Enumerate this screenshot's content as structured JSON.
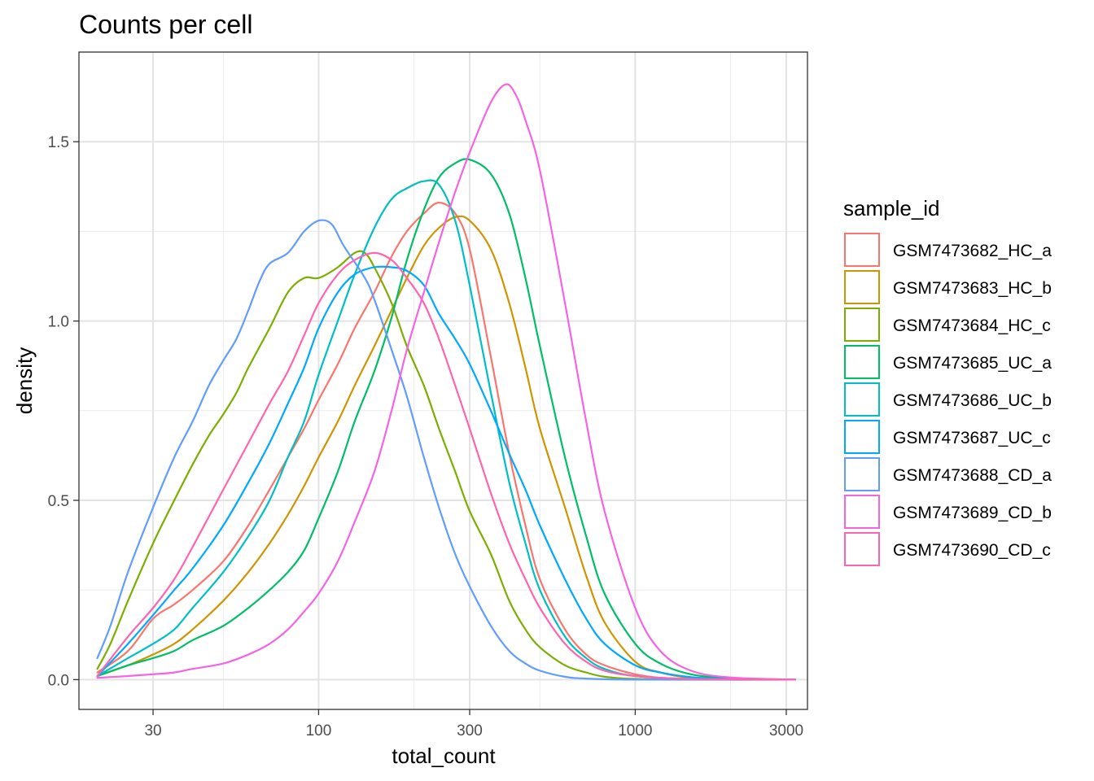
{
  "chart_data": {
    "type": "line",
    "subtype": "density",
    "title": "Counts per cell",
    "xlabel": "total_count",
    "ylabel": "density",
    "xscale": "log10",
    "xlim": [
      17.5,
      3500
    ],
    "ylim": [
      -0.083,
      1.75
    ],
    "xticks": [
      30,
      100,
      300,
      1000,
      3000
    ],
    "xtick_labels": [
      "30",
      "100",
      "300",
      "1000",
      "3000"
    ],
    "xminor": [
      50,
      200,
      500,
      2000
    ],
    "yticks": [
      0.0,
      0.5,
      1.0,
      1.5
    ],
    "ytick_labels": [
      "0.0",
      "0.5",
      "1.0",
      "1.5"
    ],
    "yminor": [
      0.25,
      0.75,
      1.25
    ],
    "grid": true,
    "legend": {
      "title": "sample_id",
      "position": "right"
    },
    "series": [
      {
        "name": "GSM7473682_HC_a",
        "color": "#F8766D",
        "points": [
          [
            20,
            0.02
          ],
          [
            25,
            0.08
          ],
          [
            30,
            0.17
          ],
          [
            35,
            0.21
          ],
          [
            40,
            0.25
          ],
          [
            50,
            0.33
          ],
          [
            60,
            0.43
          ],
          [
            70,
            0.53
          ],
          [
            80,
            0.62
          ],
          [
            90,
            0.7
          ],
          [
            100,
            0.78
          ],
          [
            115,
            0.88
          ],
          [
            130,
            0.98
          ],
          [
            150,
            1.08
          ],
          [
            170,
            1.18
          ],
          [
            190,
            1.25
          ],
          [
            215,
            1.3
          ],
          [
            240,
            1.33
          ],
          [
            270,
            1.3
          ],
          [
            300,
            1.2
          ],
          [
            350,
            0.9
          ],
          [
            400,
            0.63
          ],
          [
            450,
            0.43
          ],
          [
            500,
            0.28
          ],
          [
            600,
            0.14
          ],
          [
            700,
            0.07
          ],
          [
            800,
            0.04
          ],
          [
            1000,
            0.015
          ],
          [
            1200,
            0.005
          ],
          [
            1500,
            0.001
          ],
          [
            3200,
            0.0
          ]
        ]
      },
      {
        "name": "GSM7473683_HC_b",
        "color": "#CD9600",
        "points": [
          [
            20,
            0.01
          ],
          [
            25,
            0.04
          ],
          [
            30,
            0.07
          ],
          [
            35,
            0.1
          ],
          [
            40,
            0.14
          ],
          [
            50,
            0.22
          ],
          [
            60,
            0.3
          ],
          [
            70,
            0.38
          ],
          [
            80,
            0.46
          ],
          [
            90,
            0.54
          ],
          [
            100,
            0.62
          ],
          [
            115,
            0.72
          ],
          [
            130,
            0.82
          ],
          [
            150,
            0.93
          ],
          [
            170,
            1.03
          ],
          [
            190,
            1.12
          ],
          [
            215,
            1.21
          ],
          [
            240,
            1.26
          ],
          [
            270,
            1.29
          ],
          [
            300,
            1.28
          ],
          [
            350,
            1.2
          ],
          [
            400,
            1.05
          ],
          [
            450,
            0.87
          ],
          [
            500,
            0.7
          ],
          [
            600,
            0.48
          ],
          [
            700,
            0.29
          ],
          [
            800,
            0.16
          ],
          [
            1000,
            0.05
          ],
          [
            1200,
            0.02
          ],
          [
            1500,
            0.005
          ],
          [
            2000,
            0.001
          ],
          [
            3200,
            0.0
          ]
        ]
      },
      {
        "name": "GSM7473684_HC_c",
        "color": "#7CAE00",
        "points": [
          [
            20,
            0.03
          ],
          [
            22,
            0.1
          ],
          [
            25,
            0.22
          ],
          [
            30,
            0.38
          ],
          [
            35,
            0.5
          ],
          [
            40,
            0.6
          ],
          [
            45,
            0.68
          ],
          [
            50,
            0.74
          ],
          [
            55,
            0.8
          ],
          [
            60,
            0.87
          ],
          [
            70,
            0.98
          ],
          [
            80,
            1.08
          ],
          [
            90,
            1.12
          ],
          [
            100,
            1.12
          ],
          [
            115,
            1.15
          ],
          [
            130,
            1.19
          ],
          [
            140,
            1.19
          ],
          [
            150,
            1.15
          ],
          [
            170,
            1.05
          ],
          [
            190,
            0.93
          ],
          [
            215,
            0.82
          ],
          [
            240,
            0.7
          ],
          [
            270,
            0.58
          ],
          [
            300,
            0.47
          ],
          [
            350,
            0.35
          ],
          [
            400,
            0.22
          ],
          [
            450,
            0.14
          ],
          [
            500,
            0.09
          ],
          [
            600,
            0.04
          ],
          [
            700,
            0.02
          ],
          [
            800,
            0.008
          ],
          [
            1000,
            0.002
          ],
          [
            1500,
            0.0
          ],
          [
            3200,
            0.0
          ]
        ]
      },
      {
        "name": "GSM7473685_UC_a",
        "color": "#00BE67",
        "points": [
          [
            20,
            0.01
          ],
          [
            25,
            0.04
          ],
          [
            30,
            0.06
          ],
          [
            35,
            0.08
          ],
          [
            40,
            0.11
          ],
          [
            50,
            0.15
          ],
          [
            60,
            0.2
          ],
          [
            70,
            0.25
          ],
          [
            80,
            0.3
          ],
          [
            90,
            0.36
          ],
          [
            100,
            0.45
          ],
          [
            115,
            0.58
          ],
          [
            130,
            0.72
          ],
          [
            150,
            0.86
          ],
          [
            170,
            1.01
          ],
          [
            190,
            1.17
          ],
          [
            215,
            1.31
          ],
          [
            240,
            1.4
          ],
          [
            270,
            1.44
          ],
          [
            300,
            1.45
          ],
          [
            350,
            1.41
          ],
          [
            400,
            1.3
          ],
          [
            450,
            1.12
          ],
          [
            500,
            0.93
          ],
          [
            600,
            0.62
          ],
          [
            700,
            0.4
          ],
          [
            800,
            0.24
          ],
          [
            1000,
            0.1
          ],
          [
            1200,
            0.045
          ],
          [
            1500,
            0.015
          ],
          [
            2000,
            0.004
          ],
          [
            3200,
            0.0
          ]
        ]
      },
      {
        "name": "GSM7473686_UC_b",
        "color": "#00BFC4",
        "points": [
          [
            20,
            0.01
          ],
          [
            25,
            0.06
          ],
          [
            30,
            0.1
          ],
          [
            35,
            0.14
          ],
          [
            40,
            0.2
          ],
          [
            50,
            0.3
          ],
          [
            60,
            0.4
          ],
          [
            70,
            0.5
          ],
          [
            80,
            0.62
          ],
          [
            90,
            0.72
          ],
          [
            100,
            0.85
          ],
          [
            115,
            1.0
          ],
          [
            130,
            1.13
          ],
          [
            150,
            1.26
          ],
          [
            170,
            1.34
          ],
          [
            190,
            1.37
          ],
          [
            215,
            1.39
          ],
          [
            240,
            1.38
          ],
          [
            270,
            1.28
          ],
          [
            300,
            1.1
          ],
          [
            350,
            0.8
          ],
          [
            400,
            0.55
          ],
          [
            450,
            0.38
          ],
          [
            500,
            0.25
          ],
          [
            600,
            0.12
          ],
          [
            700,
            0.06
          ],
          [
            800,
            0.03
          ],
          [
            1000,
            0.01
          ],
          [
            1500,
            0.002
          ],
          [
            3200,
            0.0
          ]
        ]
      },
      {
        "name": "GSM7473687_UC_c",
        "color": "#00A9FF",
        "points": [
          [
            20,
            0.01
          ],
          [
            25,
            0.1
          ],
          [
            30,
            0.18
          ],
          [
            35,
            0.25
          ],
          [
            40,
            0.31
          ],
          [
            50,
            0.43
          ],
          [
            60,
            0.55
          ],
          [
            70,
            0.66
          ],
          [
            80,
            0.77
          ],
          [
            90,
            0.87
          ],
          [
            100,
            0.98
          ],
          [
            115,
            1.08
          ],
          [
            130,
            1.13
          ],
          [
            150,
            1.15
          ],
          [
            170,
            1.15
          ],
          [
            190,
            1.14
          ],
          [
            215,
            1.1
          ],
          [
            240,
            1.02
          ],
          [
            270,
            0.95
          ],
          [
            300,
            0.88
          ],
          [
            350,
            0.75
          ],
          [
            400,
            0.63
          ],
          [
            450,
            0.53
          ],
          [
            500,
            0.43
          ],
          [
            600,
            0.28
          ],
          [
            700,
            0.17
          ],
          [
            800,
            0.1
          ],
          [
            1000,
            0.04
          ],
          [
            1200,
            0.02
          ],
          [
            1500,
            0.007
          ],
          [
            2000,
            0.002
          ],
          [
            3200,
            0.0
          ]
        ]
      },
      {
        "name": "GSM7473688_CD_a",
        "color": "#619CFF",
        "points": [
          [
            20,
            0.06
          ],
          [
            22,
            0.15
          ],
          [
            25,
            0.3
          ],
          [
            30,
            0.48
          ],
          [
            35,
            0.62
          ],
          [
            40,
            0.72
          ],
          [
            45,
            0.82
          ],
          [
            50,
            0.89
          ],
          [
            55,
            0.95
          ],
          [
            60,
            1.03
          ],
          [
            65,
            1.11
          ],
          [
            70,
            1.16
          ],
          [
            80,
            1.19
          ],
          [
            90,
            1.25
          ],
          [
            100,
            1.28
          ],
          [
            110,
            1.27
          ],
          [
            120,
            1.21
          ],
          [
            140,
            1.12
          ],
          [
            150,
            1.06
          ],
          [
            170,
            0.92
          ],
          [
            190,
            0.79
          ],
          [
            215,
            0.62
          ],
          [
            240,
            0.48
          ],
          [
            270,
            0.35
          ],
          [
            300,
            0.26
          ],
          [
            350,
            0.15
          ],
          [
            400,
            0.08
          ],
          [
            450,
            0.045
          ],
          [
            500,
            0.025
          ],
          [
            600,
            0.008
          ],
          [
            700,
            0.003
          ],
          [
            1000,
            0.0
          ],
          [
            3200,
            0.0
          ]
        ]
      },
      {
        "name": "GSM7473689_CD_b",
        "color": "#F564E3",
        "points": [
          [
            20,
            0.005
          ],
          [
            25,
            0.01
          ],
          [
            30,
            0.015
          ],
          [
            35,
            0.02
          ],
          [
            40,
            0.03
          ],
          [
            50,
            0.045
          ],
          [
            60,
            0.07
          ],
          [
            70,
            0.1
          ],
          [
            80,
            0.14
          ],
          [
            90,
            0.19
          ],
          [
            100,
            0.24
          ],
          [
            115,
            0.33
          ],
          [
            130,
            0.44
          ],
          [
            150,
            0.58
          ],
          [
            170,
            0.75
          ],
          [
            190,
            0.92
          ],
          [
            215,
            1.08
          ],
          [
            240,
            1.22
          ],
          [
            270,
            1.36
          ],
          [
            300,
            1.47
          ],
          [
            350,
            1.61
          ],
          [
            390,
            1.66
          ],
          [
            420,
            1.63
          ],
          [
            450,
            1.56
          ],
          [
            500,
            1.42
          ],
          [
            600,
            1.05
          ],
          [
            700,
            0.72
          ],
          [
            800,
            0.47
          ],
          [
            1000,
            0.2
          ],
          [
            1200,
            0.08
          ],
          [
            1500,
            0.025
          ],
          [
            2000,
            0.006
          ],
          [
            3200,
            0.0
          ]
        ]
      },
      {
        "name": "GSM7473690_CD_c",
        "color": "#FF64B0",
        "points": [
          [
            20,
            0.01
          ],
          [
            25,
            0.12
          ],
          [
            30,
            0.2
          ],
          [
            35,
            0.28
          ],
          [
            40,
            0.37
          ],
          [
            50,
            0.53
          ],
          [
            60,
            0.66
          ],
          [
            70,
            0.77
          ],
          [
            80,
            0.86
          ],
          [
            90,
            0.96
          ],
          [
            100,
            1.05
          ],
          [
            115,
            1.13
          ],
          [
            130,
            1.17
          ],
          [
            150,
            1.19
          ],
          [
            170,
            1.17
          ],
          [
            190,
            1.12
          ],
          [
            215,
            1.05
          ],
          [
            240,
            0.95
          ],
          [
            270,
            0.82
          ],
          [
            300,
            0.7
          ],
          [
            350,
            0.52
          ],
          [
            400,
            0.38
          ],
          [
            450,
            0.28
          ],
          [
            500,
            0.2
          ],
          [
            600,
            0.1
          ],
          [
            700,
            0.05
          ],
          [
            800,
            0.025
          ],
          [
            1000,
            0.01
          ],
          [
            1500,
            0.002
          ],
          [
            3200,
            0.0
          ]
        ]
      }
    ]
  }
}
